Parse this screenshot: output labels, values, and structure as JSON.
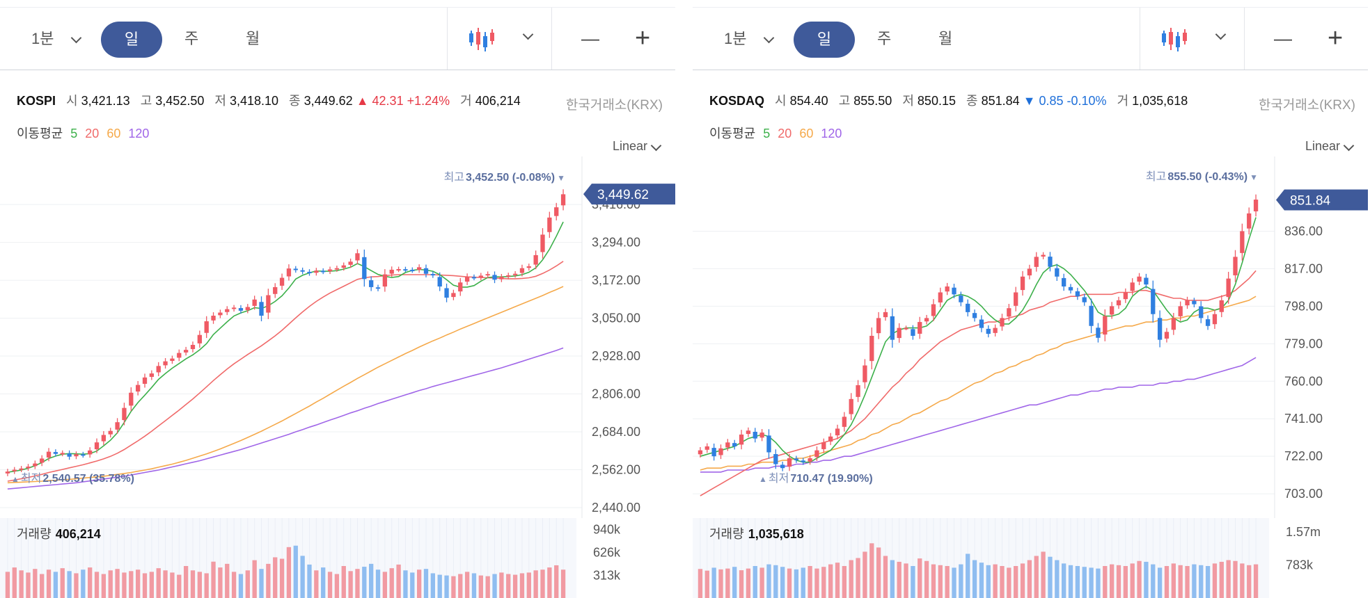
{
  "panels": [
    {
      "toolbar": {
        "interval": "1분",
        "tabs": [
          "일",
          "주",
          "월"
        ],
        "active_tab": "일",
        "chart_type_icon": "candlestick-icon",
        "zoom_out": "—",
        "zoom_in": "+"
      },
      "info": {
        "symbol": "KOSPI",
        "open_label": "시",
        "open": "3,421.13",
        "high_label": "고",
        "high": "3,452.50",
        "low_label": "저",
        "low": "3,418.10",
        "close_label": "종",
        "close": "3,449.62",
        "change": "▲ 42.31 +1.24%",
        "volume_label": "거",
        "volume": "406,214",
        "exchange": "한국거래소(KRX)"
      },
      "ma": {
        "label": "이동평균",
        "p5": "5",
        "p20": "20",
        "p60": "60",
        "p120": "120"
      },
      "scale": "Linear",
      "volume_panel": {
        "label": "거래량",
        "value": "406,214"
      }
    },
    {
      "toolbar": {
        "interval": "1분",
        "tabs": [
          "일",
          "주",
          "월"
        ],
        "active_tab": "일",
        "chart_type_icon": "candlestick-icon",
        "zoom_out": "—",
        "zoom_in": "+"
      },
      "info": {
        "symbol": "KOSDAQ",
        "open_label": "시",
        "open": "854.40",
        "high_label": "고",
        "high": "855.50",
        "low_label": "저",
        "low": "850.15",
        "close_label": "종",
        "close": "851.84",
        "change": "▼ 0.85 -0.10%",
        "volume_label": "거",
        "volume": "1,035,618",
        "exchange": "한국거래소(KRX)"
      },
      "ma": {
        "label": "이동평균",
        "p5": "5",
        "p20": "20",
        "p60": "60",
        "p120": "120"
      },
      "scale": "Linear",
      "volume_panel": {
        "label": "거래량",
        "value": "1,035,618"
      }
    }
  ],
  "colors": {
    "up": "#ef5a64",
    "down": "#2f7fe0",
    "ma5": "#3cb04a",
    "ma20": "#f06a6a",
    "ma60": "#f5a94a",
    "ma120": "#a066e8",
    "accent": "#3f5a9a",
    "up_vol": "#f19aa2",
    "down_vol": "#8fbdf0"
  },
  "chart_data": [
    {
      "type": "candlestick",
      "title": "KOSPI",
      "y_ticks": [
        "3,416.00",
        "3,294.00",
        "3,172.00",
        "3,050.00",
        "2,928.00",
        "2,806.00",
        "2,684.00",
        "2,562.00",
        "2,440.00"
      ],
      "ylim": [
        2440,
        3470
      ],
      "current_price": 3449.62,
      "current_label": "3,449.62",
      "high_annotation": {
        "prefix": "최고",
        "text": "3,452.50 (-0.08%)",
        "value": 3452.5
      },
      "low_annotation": {
        "prefix": "최저",
        "text": "2,540.57 (35.78%)",
        "value": 2540.57
      },
      "closes": [
        2556,
        2562,
        2566,
        2572,
        2582,
        2598,
        2620,
        2613,
        2616,
        2604,
        2612,
        2609,
        2624,
        2650,
        2674,
        2687,
        2715,
        2761,
        2810,
        2835,
        2859,
        2872,
        2896,
        2911,
        2920,
        2938,
        2948,
        2964,
        2996,
        3040,
        3058,
        3068,
        3079,
        3084,
        3074,
        3086,
        3110,
        3058,
        3124,
        3150,
        3180,
        3210,
        3205,
        3200,
        3195,
        3203,
        3200,
        3207,
        3211,
        3220,
        3232,
        3259,
        3176,
        3150,
        3145,
        3191,
        3206,
        3208,
        3206,
        3204,
        3214,
        3193,
        3188,
        3152,
        3116,
        3131,
        3165,
        3183,
        3180,
        3187,
        3192,
        3174,
        3183,
        3188,
        3193,
        3211,
        3217,
        3253,
        3319,
        3374,
        3407,
        3449
      ],
      "ma5": [
        2554,
        2557,
        2561,
        2567,
        2575,
        2585,
        2598,
        2606,
        2612,
        2614,
        2613,
        2612,
        2614,
        2622,
        2639,
        2657,
        2681,
        2714,
        2750,
        2778,
        2802,
        2827,
        2853,
        2872,
        2889,
        2904,
        2919,
        2932,
        2948,
        2968,
        2997,
        3018,
        3038,
        3057,
        3067,
        3074,
        3084,
        3081,
        3090,
        3104,
        3122,
        3147,
        3176,
        3188,
        3196,
        3202,
        3201,
        3201,
        3203,
        3208,
        3214,
        3226,
        3216,
        3203,
        3191,
        3185,
        3181,
        3184,
        3197,
        3204,
        3207,
        3205,
        3201,
        3190,
        3174,
        3156,
        3150,
        3150,
        3155,
        3169,
        3181,
        3183,
        3183,
        3184,
        3186,
        3190,
        3198,
        3212,
        3238,
        3272,
        3314,
        3360
      ],
      "ma20": [
        2525,
        2529,
        2533,
        2537,
        2542,
        2547,
        2553,
        2558,
        2563,
        2568,
        2573,
        2578,
        2584,
        2590,
        2597,
        2605,
        2615,
        2627,
        2641,
        2655,
        2670,
        2686,
        2703,
        2720,
        2737,
        2754,
        2772,
        2790,
        2809,
        2829,
        2849,
        2868,
        2886,
        2903,
        2918,
        2933,
        2947,
        2961,
        2977,
        2993,
        3011,
        3031,
        3051,
        3070,
        3088,
        3104,
        3118,
        3131,
        3142,
        3153,
        3164,
        3175,
        3180,
        3183,
        3184,
        3187,
        3189,
        3190,
        3190,
        3190,
        3190,
        3190,
        3190,
        3189,
        3188,
        3187,
        3185,
        3183,
        3182,
        3181,
        3180,
        3179,
        3178,
        3177,
        3177,
        3178,
        3180,
        3185,
        3194,
        3205,
        3218,
        3233
      ],
      "ma60": [
        2520,
        2521,
        2522,
        2523,
        2524,
        2525,
        2527,
        2528,
        2530,
        2531,
        2533,
        2535,
        2537,
        2539,
        2541,
        2544,
        2547,
        2550,
        2553,
        2557,
        2561,
        2565,
        2570,
        2575,
        2580,
        2586,
        2592,
        2599,
        2606,
        2613,
        2621,
        2629,
        2638,
        2647,
        2656,
        2666,
        2676,
        2686,
        2697,
        2708,
        2719,
        2731,
        2743,
        2755,
        2767,
        2780,
        2792,
        2805,
        2818,
        2831,
        2843,
        2856,
        2868,
        2880,
        2892,
        2903,
        2914,
        2925,
        2936,
        2946,
        2957,
        2967,
        2977,
        2986,
        2996,
        3005,
        3015,
        3024,
        3033,
        3042,
        3051,
        3060,
        3069,
        3078,
        3087,
        3096,
        3105,
        3114,
        3123,
        3133,
        3142,
        3152
      ],
      "ma120": [
        2500,
        2502,
        2504,
        2506,
        2508,
        2510,
        2512,
        2514,
        2516,
        2518,
        2520,
        2523,
        2526,
        2529,
        2532,
        2535,
        2538,
        2541,
        2545,
        2549,
        2553,
        2557,
        2561,
        2566,
        2571,
        2576,
        2581,
        2586,
        2591,
        2597,
        2603,
        2609,
        2615,
        2621,
        2627,
        2634,
        2641,
        2648,
        2655,
        2662,
        2669,
        2676,
        2684,
        2691,
        2699,
        2706,
        2714,
        2722,
        2729,
        2737,
        2745,
        2752,
        2760,
        2767,
        2775,
        2782,
        2789,
        2796,
        2803,
        2810,
        2817,
        2823,
        2830,
        2836,
        2842,
        2848,
        2854,
        2860,
        2866,
        2872,
        2878,
        2884,
        2890,
        2897,
        2904,
        2911,
        2918,
        2925,
        2932,
        2939,
        2946,
        2954
      ],
      "volume": {
        "y_ticks": [
          "940k",
          "626k",
          "313k"
        ],
        "values": [
          360,
          420,
          380,
          350,
          400,
          330,
          390,
          360,
          410,
          370,
          340,
          390,
          420,
          360,
          330,
          380,
          400,
          350,
          370,
          390,
          340,
          360,
          410,
          380,
          350,
          320,
          440,
          380,
          360,
          340,
          500,
          420,
          470,
          360,
          330,
          380,
          520,
          400,
          470,
          560,
          540,
          700,
          720,
          580,
          460,
          380,
          420,
          360,
          330,
          440,
          370,
          400,
          430,
          470,
          390,
          360,
          410,
          460,
          380,
          350,
          390,
          400,
          340,
          320,
          310,
          300,
          330,
          360,
          340,
          310,
          300,
          330,
          350,
          330,
          320,
          340,
          350,
          380,
          390,
          420,
          450,
          390
        ]
      }
    },
    {
      "type": "candlestick",
      "title": "KOSDAQ",
      "y_ticks": [
        "836.00",
        "817.00",
        "798.00",
        "779.00",
        "760.00",
        "741.00",
        "722.00",
        "703.00"
      ],
      "ylim": [
        696,
        858
      ],
      "current_price": 851.84,
      "current_label": "851.84",
      "high_annotation": {
        "prefix": "최고",
        "text": "855.50 (-0.43%)",
        "value": 855.5
      },
      "low_annotation": {
        "prefix": "최저",
        "text": "710.47 (19.90%)",
        "value": 710.47
      },
      "closes": [
        725,
        727,
        722,
        726,
        729,
        727,
        733,
        735,
        731,
        734,
        724,
        718,
        716,
        721,
        720,
        719,
        721,
        725,
        729,
        732,
        736,
        742,
        751,
        758,
        768,
        783,
        792,
        795,
        781,
        787,
        787,
        783,
        790,
        792,
        799,
        805,
        808,
        804,
        800,
        795,
        792,
        787,
        784,
        787,
        792,
        797,
        805,
        813,
        817,
        823,
        824,
        818,
        813,
        808,
        806,
        803,
        800,
        788,
        782,
        793,
        798,
        801,
        805,
        810,
        813,
        809,
        794,
        781,
        785,
        792,
        798,
        801,
        799,
        792,
        788,
        794,
        801,
        812,
        823,
        836,
        845,
        852
      ],
      "ma5": [
        722,
        723,
        724,
        725,
        726,
        727,
        729,
        731,
        732,
        733,
        732,
        729,
        725,
        722,
        720,
        719,
        719,
        721,
        723,
        725,
        729,
        733,
        738,
        745,
        753,
        762,
        771,
        780,
        784,
        786,
        787,
        787,
        787,
        788,
        791,
        796,
        801,
        803,
        804,
        803,
        801,
        798,
        794,
        791,
        789,
        789,
        792,
        796,
        802,
        809,
        815,
        818,
        819,
        817,
        814,
        810,
        806,
        801,
        795,
        793,
        793,
        794,
        797,
        803,
        806,
        808,
        806,
        801,
        796,
        792,
        790,
        791,
        795,
        797,
        797,
        796,
        797,
        801,
        809,
        820,
        832,
        843
      ],
      "ma20": [
        702,
        704,
        706,
        708,
        710,
        712,
        714,
        716,
        718,
        720,
        721,
        722,
        723,
        724,
        725,
        726,
        727,
        728,
        729,
        730,
        731,
        733,
        735,
        738,
        741,
        745,
        749,
        753,
        757,
        760,
        764,
        767,
        771,
        774,
        777,
        780,
        782,
        784,
        786,
        787,
        788,
        789,
        790,
        790,
        791,
        792,
        793,
        794,
        796,
        797,
        798,
        800,
        801,
        802,
        803,
        803,
        804,
        804,
        804,
        804,
        804,
        805,
        805,
        805,
        806,
        806,
        805,
        804,
        803,
        802,
        802,
        801,
        801,
        801,
        801,
        802,
        803,
        804,
        806,
        809,
        812,
        816
      ],
      "ma60": [
        715,
        716,
        716,
        716,
        717,
        717,
        717,
        718,
        718,
        719,
        719,
        719,
        720,
        720,
        721,
        721,
        722,
        723,
        724,
        725,
        726,
        727,
        728,
        730,
        731,
        733,
        734,
        736,
        738,
        739,
        741,
        743,
        744,
        746,
        748,
        750,
        751,
        753,
        755,
        757,
        759,
        760,
        762,
        764,
        765,
        767,
        768,
        770,
        771,
        773,
        774,
        776,
        777,
        779,
        780,
        781,
        782,
        783,
        784,
        785,
        786,
        787,
        788,
        788,
        789,
        790,
        790,
        791,
        791,
        792,
        792,
        793,
        793,
        794,
        795,
        796,
        797,
        798,
        799,
        800,
        801,
        803
      ],
      "ma120": [
        714,
        714,
        714,
        714,
        715,
        715,
        715,
        715,
        716,
        716,
        716,
        717,
        717,
        717,
        718,
        718,
        719,
        719,
        720,
        720,
        721,
        722,
        722,
        723,
        724,
        725,
        726,
        727,
        728,
        729,
        730,
        731,
        732,
        733,
        734,
        735,
        736,
        737,
        738,
        739,
        740,
        741,
        742,
        743,
        744,
        745,
        746,
        747,
        748,
        748,
        749,
        750,
        751,
        752,
        753,
        753,
        754,
        755,
        755,
        756,
        756,
        757,
        757,
        757,
        758,
        758,
        758,
        759,
        759,
        760,
        760,
        761,
        761,
        762,
        763,
        764,
        765,
        766,
        767,
        768,
        770,
        772
      ],
      "volume": {
        "y_ticks": [
          "1.57m",
          "783k"
        ],
        "values": [
          690,
          650,
          720,
          680,
          700,
          740,
          660,
          700,
          760,
          720,
          800,
          780,
          740,
          700,
          680,
          720,
          760,
          700,
          740,
          800,
          840,
          760,
          900,
          950,
          1100,
          1300,
          1200,
          1000,
          900,
          860,
          820,
          760,
          940,
          880,
          800,
          780,
          760,
          720,
          800,
          1050,
          900,
          840,
          780,
          800,
          760,
          720,
          760,
          820,
          900,
          1000,
          1100,
          980,
          900,
          820,
          780,
          760,
          740,
          720,
          700,
          760,
          800,
          780,
          760,
          820,
          880,
          860,
          800,
          720,
          760,
          820,
          780,
          760,
          800,
          780,
          760,
          820,
          860,
          900,
          880,
          820,
          780,
          800
        ]
      }
    }
  ]
}
